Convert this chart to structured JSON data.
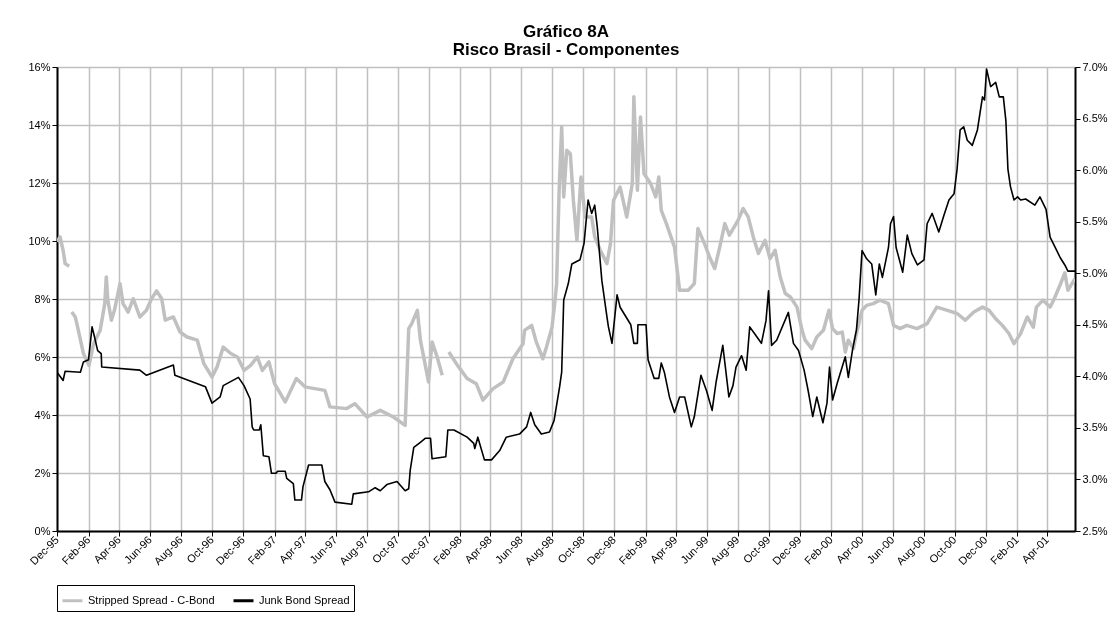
{
  "chart_data": {
    "type": "line",
    "title": "Gráfico 8A",
    "subtitle": "Risco Brasil - Componentes",
    "xlim": [
      "1995-12-01",
      "2001-05-26"
    ],
    "xticks": [
      {
        "value": "1995-12-01",
        "label": "Dec-95"
      },
      {
        "value": "1996-02-01",
        "label": "Feb-96"
      },
      {
        "value": "1996-04-01",
        "label": "Apr-96"
      },
      {
        "value": "1996-06-01",
        "label": "Jun-96"
      },
      {
        "value": "1996-08-01",
        "label": "Aug-96"
      },
      {
        "value": "1996-10-01",
        "label": "Oct-96"
      },
      {
        "value": "1996-12-01",
        "label": "Dec-96"
      },
      {
        "value": "1997-02-01",
        "label": "Feb-97"
      },
      {
        "value": "1997-04-01",
        "label": "Apr-97"
      },
      {
        "value": "1997-06-01",
        "label": "Jun-97"
      },
      {
        "value": "1997-08-01",
        "label": "Aug-97"
      },
      {
        "value": "1997-10-01",
        "label": "Oct-97"
      },
      {
        "value": "1997-12-01",
        "label": "Dec-97"
      },
      {
        "value": "1998-02-01",
        "label": "Feb-98"
      },
      {
        "value": "1998-04-01",
        "label": "Apr-98"
      },
      {
        "value": "1998-06-01",
        "label": "Jun-98"
      },
      {
        "value": "1998-08-01",
        "label": "Aug-98"
      },
      {
        "value": "1998-10-01",
        "label": "Oct-98"
      },
      {
        "value": "1998-12-01",
        "label": "Dec-98"
      },
      {
        "value": "1999-02-01",
        "label": "Feb-99"
      },
      {
        "value": "1999-04-01",
        "label": "Apr-99"
      },
      {
        "value": "1999-06-01",
        "label": "Jun-99"
      },
      {
        "value": "1999-08-01",
        "label": "Aug-99"
      },
      {
        "value": "1999-10-01",
        "label": "Oct-99"
      },
      {
        "value": "1999-12-01",
        "label": "Dec-99"
      },
      {
        "value": "2000-02-01",
        "label": "Feb-00"
      },
      {
        "value": "2000-04-01",
        "label": "Apr-00"
      },
      {
        "value": "2000-06-01",
        "label": "Jun-00"
      },
      {
        "value": "2000-08-01",
        "label": "Aug-00"
      },
      {
        "value": "2000-10-01",
        "label": "Oct-00"
      },
      {
        "value": "2000-12-01",
        "label": "Dec-00"
      },
      {
        "value": "2001-02-01",
        "label": "Feb-01"
      },
      {
        "value": "2001-04-01",
        "label": "Apr-01"
      }
    ],
    "ylim": [
      0,
      16
    ],
    "yticks": [
      {
        "value": 0,
        "label": "0%"
      },
      {
        "value": 2,
        "label": "2%"
      },
      {
        "value": 4,
        "label": "4%"
      },
      {
        "value": 6,
        "label": "6%"
      },
      {
        "value": 8,
        "label": "8%"
      },
      {
        "value": 10,
        "label": "10%"
      },
      {
        "value": 12,
        "label": "12%"
      },
      {
        "value": 14,
        "label": "14%"
      },
      {
        "value": 16,
        "label": "16%"
      }
    ],
    "y2lim": [
      2.5,
      7.0
    ],
    "y2ticks": [
      {
        "value": 2.5,
        "label": "2.5%"
      },
      {
        "value": 3.0,
        "label": "3.0%"
      },
      {
        "value": 3.5,
        "label": "3.5%"
      },
      {
        "value": 4.0,
        "label": "4.0%"
      },
      {
        "value": 4.5,
        "label": "4.5%"
      },
      {
        "value": 5.0,
        "label": "5.0%"
      },
      {
        "value": 5.5,
        "label": "5.5%"
      },
      {
        "value": 6.0,
        "label": "6.0%"
      },
      {
        "value": 6.5,
        "label": "6.5%"
      },
      {
        "value": 7.0,
        "label": "7.0%"
      }
    ],
    "grid": true,
    "legend": "bottom",
    "series": [
      {
        "name": "Stripped Spread - C-Bond",
        "color": "#c0c0c0",
        "x": [
          "1995-12-01",
          "1995-12-07",
          "1995-12-13",
          "1995-12-17",
          "1995-12-25",
          "1995-12-27",
          "1995-12-30",
          "1996-01-06",
          "1996-01-12",
          "1996-01-22",
          "1996-02-02",
          "1996-02-11",
          "1996-02-24",
          "1996-03-04",
          "1996-03-07",
          "1996-03-10",
          "1996-03-17",
          "1996-03-23",
          "1996-04-03",
          "1996-04-09",
          "1996-04-19",
          "1996-04-29",
          "1996-05-12",
          "1996-05-25",
          "1996-06-04",
          "1996-06-14",
          "1996-06-24",
          "1996-07-01",
          "1996-07-17",
          "1996-07-30",
          "1996-08-13",
          "1996-09-02",
          "1996-09-15",
          "1996-10-01",
          "1996-10-11",
          "1996-10-23",
          "1996-11-07",
          "1996-11-20",
          "1996-12-03",
          "1996-12-16",
          "1996-12-29",
          "1997-01-08",
          "1997-01-21",
          "1997-02-01",
          "1997-02-22",
          "1997-03-16",
          "1997-04-02",
          "1997-04-21",
          "1997-05-11",
          "1997-05-21",
          "1997-06-23",
          "1997-07-09",
          "1997-08-02",
          "1997-08-28",
          "1997-09-23",
          "1997-10-16",
          "1997-10-23",
          "1997-10-29",
          "1997-11-09",
          "1997-11-15",
          "1997-12-01",
          "1997-12-08",
          "1997-12-18",
          "1997-12-28",
          "1998-01-03",
          "1998-01-10",
          "1998-01-27",
          "1998-02-15",
          "1998-03-05",
          "1998-03-18",
          "1998-04-07",
          "1998-04-27",
          "1998-05-16",
          "1998-06-05",
          "1998-06-08",
          "1998-06-22",
          "1998-07-01",
          "1998-07-14",
          "1998-07-21",
          "1998-08-01",
          "1998-08-07",
          "1998-08-10",
          "1998-08-15",
          "1998-08-20",
          "1998-08-24",
          "1998-08-30",
          "1998-09-06",
          "1998-09-12",
          "1998-09-19",
          "1998-09-27",
          "1998-10-05",
          "1998-10-18",
          "1998-10-24",
          "1998-11-04",
          "1998-11-17",
          "1998-11-24",
          "1998-11-30",
          "1998-12-13",
          "1998-12-26",
          "1999-01-06",
          "1999-01-09",
          "1999-01-16",
          "1999-01-22",
          "1999-01-29",
          "1999-02-11",
          "1999-02-21",
          "1999-02-27",
          "1999-03-04",
          "1999-03-14",
          "1999-03-30",
          "1999-04-09",
          "1999-04-26",
          "1999-05-08",
          "1999-05-15",
          "1999-05-28",
          "1999-06-07",
          "1999-06-17",
          "1999-06-27",
          "1999-07-07",
          "1999-07-16",
          "1999-08-02",
          "1999-08-12",
          "1999-08-22",
          "1999-09-01",
          "1999-09-11",
          "1999-09-24",
          "1999-10-04",
          "1999-10-14",
          "1999-10-24",
          "1999-11-03",
          "1999-11-13",
          "1999-11-26",
          "1999-12-06",
          "1999-12-12",
          "1999-12-25",
          "2000-01-04",
          "2000-01-17",
          "2000-01-28",
          "2000-02-04",
          "2000-02-13",
          "2000-02-23",
          "2000-02-29",
          "2000-03-06",
          "2000-03-16",
          "2000-03-22",
          "2000-04-02",
          "2000-04-11",
          "2000-04-24",
          "2000-05-07",
          "2000-05-24",
          "2000-06-03",
          "2000-06-16",
          "2000-06-29",
          "2000-07-19",
          "2000-08-08",
          "2000-08-27",
          "2000-09-17",
          "2000-10-06",
          "2000-10-22",
          "2000-11-08",
          "2000-11-25",
          "2000-12-08",
          "2000-12-21",
          "2001-01-03",
          "2001-01-16",
          "2001-01-26",
          "2001-02-08",
          "2001-02-21",
          "2001-03-05",
          "2001-03-11",
          "2001-03-24",
          "2001-04-07",
          "2001-04-14",
          "2001-04-27",
          "2001-05-06",
          "2001-05-12",
          "2001-05-26"
        ],
        "values": [
          9.97,
          10.14,
          9.68,
          9.22,
          9.13,
          null,
          7.55,
          7.38,
          6.92,
          6.12,
          5.71,
          6.46,
          6.92,
          7.84,
          8.76,
          7.96,
          7.27,
          7.61,
          8.53,
          7.84,
          7.55,
          8.01,
          7.38,
          7.61,
          8.01,
          8.28,
          8.01,
          7.27,
          7.38,
          6.86,
          6.69,
          6.58,
          5.77,
          5.31,
          5.66,
          6.34,
          6.12,
          6.0,
          5.54,
          5.71,
          6.0,
          5.54,
          5.83,
          5.08,
          4.45,
          5.26,
          4.97,
          4.91,
          4.85,
          4.28,
          4.22,
          4.39,
          3.93,
          4.16,
          3.93,
          3.64,
          6.98,
          7.15,
          7.61,
          6.58,
          5.14,
          6.52,
          6.0,
          5.37,
          null,
          6.17,
          5.71,
          5.26,
          5.08,
          4.51,
          4.91,
          5.14,
          5.94,
          6.46,
          6.92,
          7.09,
          6.52,
          5.94,
          6.34,
          7.03,
          7.96,
          8.53,
          11.75,
          13.93,
          11.52,
          13.13,
          13.01,
          11.4,
          10.02,
          12.21,
          10.83,
          10.83,
          10.14,
          9.68,
          9.22,
          9.91,
          11.4,
          11.86,
          10.83,
          11.98,
          14.97,
          11.75,
          14.28,
          12.32,
          11.98,
          11.52,
          12.21,
          11.06,
          10.6,
          9.79,
          8.3,
          8.3,
          8.53,
          10.43,
          9.91,
          9.45,
          9.05,
          9.79,
          10.6,
          10.2,
          10.71,
          11.12,
          10.83,
          10.14,
          9.57,
          10.02,
          9.39,
          9.68,
          8.76,
          8.19,
          8.07,
          7.72,
          6.92,
          6.58,
          6.29,
          6.69,
          6.92,
          7.61,
          6.98,
          6.81,
          6.86,
          6.17,
          6.58,
          6.29,
          6.81,
          7.61,
          7.78,
          7.84,
          7.96,
          7.84,
          7.09,
          6.98,
          7.09,
          6.98,
          7.15,
          7.72,
          7.61,
          7.5,
          7.27,
          7.55,
          7.72,
          7.61,
          7.32,
          7.09,
          6.81,
          6.46,
          6.81,
          7.38,
          7.03,
          7.72,
          7.96,
          7.72,
          7.96,
          8.5,
          8.9,
          8.3,
          8.7
        ]
      },
      {
        "name": "Junk Bond Spread",
        "color": "#000000",
        "axis": "y2",
        "x": [
          "1995-12-01",
          "1995-12-13",
          "1995-12-17",
          "1996-01-16",
          "1996-01-22",
          "1996-02-01",
          "1996-02-08",
          "1996-02-11",
          "1996-02-19",
          "1996-02-26",
          "1996-02-27",
          "1996-05-12",
          "1996-05-25",
          "1996-07-17",
          "1996-07-20",
          "1996-09-18",
          "1996-10-01",
          "1996-10-17",
          "1996-10-23",
          "1996-11-22",
          "1996-12-03",
          "1996-12-15",
          "1996-12-19",
          "1996-12-22",
          "1997-01-02",
          "1997-01-05",
          "1997-01-10",
          "1997-01-21",
          "1997-01-26",
          "1997-02-04",
          "1997-02-07",
          "1997-02-22",
          "1997-02-25",
          "1997-03-10",
          "1997-03-13",
          "1997-03-26",
          "1997-03-29",
          "1997-04-09",
          "1997-05-05",
          "1997-05-11",
          "1997-05-21",
          "1997-05-31",
          "1997-07-03",
          "1997-07-06",
          "1997-08-05",
          "1997-08-18",
          "1997-08-28",
          "1997-09-10",
          "1997-09-30",
          "1997-10-16",
          "1997-10-23",
          "1997-10-26",
          "1997-11-02",
          "1997-11-15",
          "1997-11-25",
          "1997-12-05",
          "1997-12-08",
          "1998-01-04",
          "1998-01-08",
          "1998-01-20",
          "1998-02-15",
          "1998-02-28",
          "1998-03-02",
          "1998-03-08",
          "1998-03-21",
          "1998-04-04",
          "1998-04-20",
          "1998-05-03",
          "1998-05-29",
          "1998-06-12",
          "1998-06-20",
          "1998-06-28",
          "1998-07-11",
          "1998-07-27",
          "1998-08-05",
          "1998-08-16",
          "1998-08-20",
          "1998-08-24",
          "1998-09-02",
          "1998-09-09",
          "1998-09-25",
          "1998-10-03",
          "1998-10-11",
          "1998-10-18",
          "1998-10-24",
          "1998-10-29",
          "1998-11-07",
          "1998-11-17",
          "1998-11-20",
          "1998-11-27",
          "1998-12-07",
          "1998-12-13",
          "1999-01-03",
          "1999-01-09",
          "1999-01-16",
          "1999-01-17",
          "1999-02-02",
          "1999-02-06",
          "1999-02-18",
          "1999-02-27",
          "1999-03-04",
          "1999-03-10",
          "1999-03-20",
          "1999-03-30",
          "1999-04-09",
          "1999-04-19",
          "1999-05-02",
          "1999-05-08",
          "1999-05-21",
          "1999-06-01",
          "1999-06-12",
          "1999-06-20",
          "1999-07-03",
          "1999-07-15",
          "1999-07-23",
          "1999-07-29",
          "1999-08-09",
          "1999-08-18",
          "1999-08-25",
          "1999-09-04",
          "1999-09-17",
          "1999-09-26",
          "1999-10-01",
          "1999-10-07",
          "1999-10-17",
          "1999-11-09",
          "1999-11-19",
          "1999-11-29",
          "1999-12-10",
          "1999-12-18",
          "1999-12-27",
          "2000-01-04",
          "2000-01-16",
          "2000-01-24",
          "2000-01-29",
          "2000-02-04",
          "2000-02-13",
          "2000-02-29",
          "2000-03-06",
          "2000-03-14",
          "2000-03-22",
          "2000-03-27",
          "2000-04-02",
          "2000-04-11",
          "2000-04-21",
          "2000-04-29",
          "2000-05-06",
          "2000-05-12",
          "2000-05-24",
          "2000-05-28",
          "2000-06-03",
          "2000-06-08",
          "2000-06-21",
          "2000-06-30",
          "2000-07-09",
          "2000-07-20",
          "2000-08-02",
          "2000-08-08",
          "2000-08-18",
          "2000-08-31",
          "2000-09-10",
          "2000-09-20",
          "2000-09-30",
          "2000-10-06",
          "2000-10-12",
          "2000-10-19",
          "2000-10-26",
          "2000-11-05",
          "2000-11-15",
          "2000-11-25",
          "2000-11-29",
          "2000-12-03",
          "2000-12-11",
          "2000-12-21",
          "2000-12-28",
          "2001-01-05",
          "2001-01-10",
          "2001-01-14",
          "2001-01-19",
          "2001-01-26",
          "2001-02-02",
          "2001-02-08",
          "2001-02-18",
          "2001-03-08",
          "2001-03-18",
          "2001-03-30",
          "2001-04-07",
          "2001-04-17",
          "2001-04-27",
          "2001-05-06",
          "2001-05-12",
          "2001-05-26"
        ],
        "values": [
          4.04,
          3.96,
          4.05,
          4.04,
          4.14,
          4.16,
          4.48,
          4.42,
          4.25,
          4.22,
          4.09,
          4.06,
          4.01,
          4.11,
          4.01,
          3.9,
          3.74,
          3.8,
          3.91,
          3.99,
          3.91,
          3.78,
          3.51,
          3.48,
          3.48,
          3.53,
          3.23,
          3.22,
          3.06,
          3.06,
          3.08,
          3.08,
          3.01,
          2.96,
          2.8,
          2.8,
          2.93,
          3.14,
          3.14,
          2.98,
          2.9,
          2.78,
          2.76,
          2.86,
          2.88,
          2.92,
          2.89,
          2.95,
          2.98,
          2.89,
          2.91,
          3.09,
          3.31,
          3.36,
          3.4,
          3.4,
          3.2,
          3.22,
          3.48,
          3.48,
          3.41,
          3.35,
          3.3,
          3.41,
          3.19,
          3.19,
          3.28,
          3.41,
          3.44,
          3.51,
          3.65,
          3.53,
          3.44,
          3.46,
          3.57,
          3.9,
          4.04,
          4.74,
          4.9,
          5.09,
          5.13,
          5.29,
          5.71,
          5.58,
          5.66,
          5.45,
          4.93,
          4.58,
          4.48,
          4.32,
          4.79,
          4.67,
          4.5,
          4.32,
          4.32,
          4.5,
          4.5,
          4.16,
          3.98,
          3.98,
          4.13,
          4.04,
          3.8,
          3.65,
          3.8,
          3.8,
          3.51,
          3.61,
          4.01,
          3.86,
          3.67,
          3.95,
          4.3,
          3.8,
          3.91,
          4.09,
          4.2,
          4.06,
          4.48,
          4.41,
          4.32,
          4.54,
          4.83,
          4.3,
          4.35,
          4.62,
          4.32,
          4.25,
          4.06,
          3.86,
          3.61,
          3.8,
          3.55,
          3.74,
          4.09,
          3.77,
          3.93,
          4.19,
          3.99,
          4.25,
          4.45,
          4.74,
          5.22,
          5.14,
          5.09,
          4.79,
          5.09,
          4.96,
          5.25,
          5.48,
          5.55,
          5.25,
          5.01,
          5.37,
          5.19,
          5.08,
          5.13,
          5.48,
          5.58,
          5.4,
          5.56,
          5.71,
          5.77,
          6.01,
          6.39,
          6.42,
          6.29,
          6.24,
          6.39,
          6.71,
          6.68,
          6.98,
          6.81,
          6.85,
          6.71,
          6.71,
          6.48,
          6.01,
          5.84,
          5.71,
          5.74,
          5.71,
          5.72,
          5.66,
          5.74,
          5.62,
          5.35,
          5.25,
          5.15,
          5.08,
          5.02,
          5.02
        ]
      }
    ]
  }
}
